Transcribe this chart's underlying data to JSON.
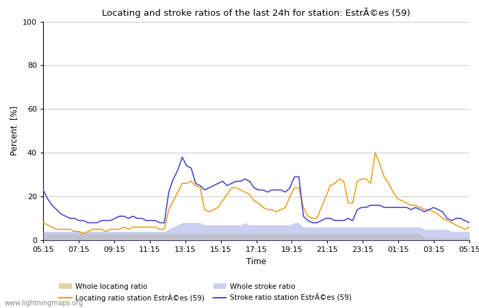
{
  "title": "Locating and stroke ratios of the last 24h for station: EstrÃ©es (59)",
  "ylabel": "Percent  [%]",
  "xlabel": "Time",
  "xlim_labels": [
    "05:15",
    "07:15",
    "09:15",
    "11:15",
    "13:15",
    "15:15",
    "17:15",
    "19:15",
    "21:15",
    "23:15",
    "01:15",
    "03:15",
    "05:15"
  ],
  "ylim": [
    0,
    100
  ],
  "yticks": [
    0,
    20,
    40,
    60,
    80,
    100
  ],
  "grid_color": "#cccccc",
  "watermark": "www.lightningmaps.org",
  "locating_station": [
    8,
    7,
    6,
    5,
    5,
    5,
    5,
    4,
    4,
    3,
    4,
    5,
    5,
    5,
    4,
    5,
    5,
    5,
    6,
    5,
    6,
    6,
    6,
    6,
    6,
    6,
    5,
    5,
    14,
    18,
    22,
    26,
    26,
    27,
    25,
    24,
    14,
    13,
    14,
    15,
    18,
    21,
    24,
    24,
    23,
    22,
    21,
    18,
    17,
    15,
    14,
    14,
    13,
    14,
    15,
    20,
    24,
    24,
    15,
    11,
    10,
    10,
    15,
    20,
    25,
    26,
    28,
    27,
    17,
    17,
    27,
    28,
    28,
    26,
    40,
    35,
    29,
    26,
    22,
    19,
    18,
    17,
    16,
    16,
    15,
    14,
    14,
    13,
    12,
    10,
    9,
    8,
    7,
    6,
    5,
    6
  ],
  "stroke_station": [
    23,
    19,
    16,
    14,
    12,
    11,
    10,
    10,
    9,
    9,
    8,
    8,
    8,
    9,
    9,
    9,
    10,
    11,
    11,
    10,
    11,
    10,
    10,
    9,
    9,
    9,
    8,
    8,
    22,
    28,
    32,
    38,
    34,
    33,
    26,
    25,
    23,
    24,
    25,
    26,
    27,
    25,
    26,
    27,
    27,
    28,
    27,
    24,
    23,
    23,
    22,
    23,
    23,
    23,
    22,
    24,
    29,
    29,
    11,
    9,
    8,
    8,
    9,
    10,
    10,
    9,
    9,
    9,
    10,
    9,
    14,
    15,
    15,
    16,
    16,
    16,
    15,
    15,
    15,
    15,
    15,
    15,
    14,
    15,
    14,
    13,
    14,
    15,
    14,
    13,
    10,
    9,
    10,
    10,
    9,
    8
  ],
  "whole_locating": [
    3,
    3,
    3,
    3,
    3,
    3,
    3,
    3,
    3,
    3,
    3,
    3,
    3,
    3,
    3,
    3,
    3,
    3,
    3,
    3,
    3,
    3,
    3,
    3,
    3,
    3,
    3,
    3,
    3,
    3,
    3,
    3,
    3,
    3,
    3,
    3,
    3,
    3,
    3,
    3,
    3,
    3,
    3,
    3,
    3,
    3,
    3,
    3,
    3,
    3,
    3,
    3,
    3,
    3,
    3,
    3,
    3,
    3,
    3,
    3,
    3,
    3,
    3,
    3,
    3,
    3,
    3,
    3,
    3,
    3,
    3,
    3,
    3,
    3,
    3,
    3,
    3,
    3,
    3,
    3,
    3,
    3,
    3,
    3,
    3,
    1,
    1,
    1,
    1,
    1,
    1,
    1,
    1,
    1,
    1,
    1
  ],
  "whole_stroke": [
    4,
    4,
    4,
    4,
    4,
    4,
    4,
    4,
    4,
    4,
    4,
    4,
    4,
    4,
    4,
    4,
    4,
    4,
    4,
    4,
    4,
    4,
    4,
    4,
    4,
    4,
    4,
    4,
    5,
    6,
    7,
    8,
    8,
    8,
    8,
    8,
    7,
    7,
    7,
    7,
    7,
    7,
    7,
    7,
    7,
    8,
    7,
    7,
    7,
    7,
    7,
    7,
    7,
    7,
    7,
    7,
    8,
    8,
    6,
    6,
    6,
    6,
    6,
    6,
    6,
    6,
    6,
    6,
    6,
    6,
    6,
    6,
    6,
    6,
    6,
    6,
    6,
    6,
    6,
    6,
    6,
    6,
    6,
    6,
    6,
    5,
    5,
    5,
    5,
    5,
    5,
    4,
    4,
    4,
    4,
    4
  ],
  "fill_locating_color": "#d4c882",
  "fill_locating_alpha": 0.75,
  "fill_stroke_color": "#b0b8e8",
  "fill_stroke_alpha": 0.65,
  "line_locating_color": "#e8a020",
  "line_stroke_color": "#4848c8",
  "line_width": 1.2
}
